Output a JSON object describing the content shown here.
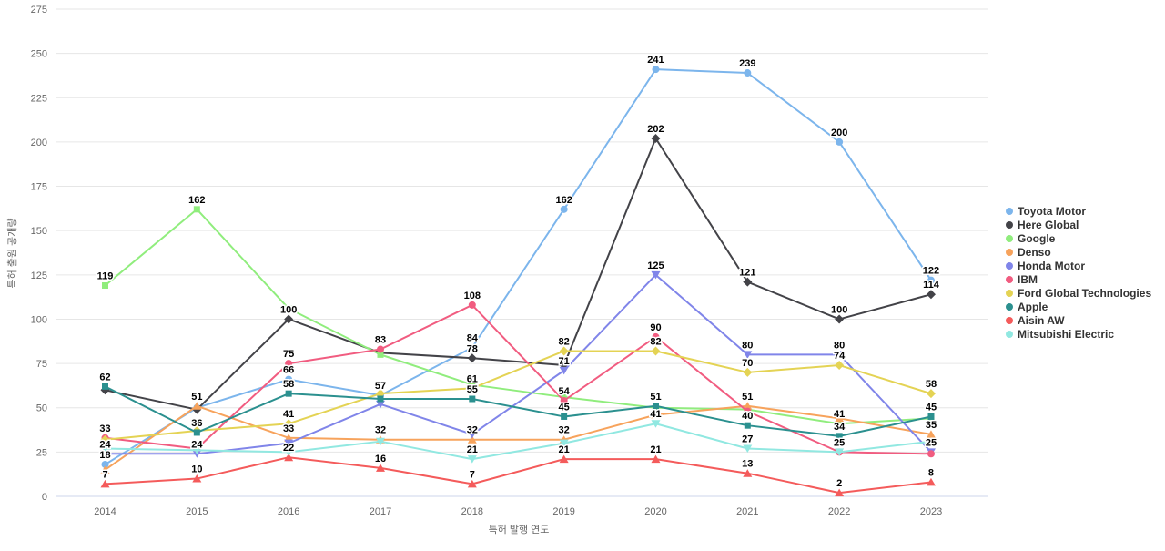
{
  "chart_data": {
    "type": "line",
    "title": "",
    "xlabel": "특허 발행 연도",
    "ylabel": "특허 출원 공개량",
    "ylim": [
      0,
      275
    ],
    "ytick_step": 25,
    "yticks": [
      0,
      25,
      50,
      75,
      100,
      125,
      150,
      175,
      200,
      225,
      250,
      275
    ],
    "grid": true,
    "legend_position": "right",
    "categories": [
      "2014",
      "2015",
      "2016",
      "2017",
      "2018",
      "2019",
      "2020",
      "2021",
      "2022",
      "2023"
    ],
    "series": [
      {
        "name": "Toyota Motor",
        "color": "#7cb5ec",
        "marker": "circle",
        "values": [
          18,
          50,
          66,
          57,
          84,
          162,
          241,
          239,
          200,
          122
        ],
        "labels": [
          18,
          null,
          66,
          57,
          84,
          162,
          241,
          239,
          200,
          122
        ]
      },
      {
        "name": "Here Global",
        "color": "#434348",
        "marker": "diamond",
        "values": [
          60,
          49,
          100,
          81,
          78,
          74,
          202,
          121,
          100,
          114
        ],
        "labels": [
          null,
          null,
          100,
          null,
          78,
          null,
          202,
          121,
          100,
          114
        ]
      },
      {
        "name": "Google",
        "color": "#90ed7d",
        "marker": "square",
        "values": [
          119,
          162,
          106,
          80,
          63,
          56,
          50,
          49,
          41,
          44
        ],
        "labels": [
          119,
          162,
          null,
          null,
          null,
          null,
          null,
          null,
          41,
          null
        ]
      },
      {
        "name": "Denso",
        "color": "#f7a35c",
        "marker": "triangle",
        "values": [
          15,
          51,
          33,
          32,
          32,
          32,
          46,
          51,
          44,
          35
        ],
        "labels": [
          null,
          51,
          33,
          32,
          32,
          32,
          null,
          51,
          null,
          35
        ]
      },
      {
        "name": "Honda Motor",
        "color": "#8085e9",
        "marker": "triangle-down",
        "values": [
          24,
          24,
          30,
          52,
          35,
          71,
          125,
          80,
          80,
          25
        ],
        "labels": [
          24,
          24,
          null,
          null,
          null,
          71,
          125,
          80,
          80,
          25
        ]
      },
      {
        "name": "IBM",
        "color": "#f15c80",
        "marker": "circle",
        "values": [
          33,
          27,
          75,
          83,
          108,
          54,
          90,
          48,
          25,
          24
        ],
        "labels": [
          33,
          null,
          75,
          83,
          108,
          54,
          90,
          null,
          25,
          null
        ]
      },
      {
        "name": "Ford Global Technologies",
        "color": "#e4d354",
        "marker": "diamond",
        "values": [
          32,
          37,
          41,
          58,
          61,
          82,
          82,
          70,
          74,
          58
        ],
        "labels": [
          null,
          null,
          41,
          null,
          61,
          82,
          82,
          70,
          74,
          58
        ]
      },
      {
        "name": "Apple",
        "color": "#2b908f",
        "marker": "square",
        "values": [
          62,
          36,
          58,
          55,
          55,
          45,
          51,
          40,
          34,
          45
        ],
        "labels": [
          62,
          36,
          58,
          null,
          55,
          45,
          51,
          40,
          34,
          45
        ]
      },
      {
        "name": "Aisin AW",
        "color": "#f45b5b",
        "marker": "triangle",
        "values": [
          7,
          10,
          22,
          16,
          7,
          21,
          21,
          13,
          2,
          8
        ],
        "labels": [
          7,
          10,
          22,
          16,
          7,
          21,
          21,
          13,
          2,
          8
        ]
      },
      {
        "name": "Mitsubishi Electric",
        "color": "#91e8e1",
        "marker": "triangle-down",
        "values": [
          27,
          26,
          25,
          31,
          21,
          30,
          41,
          27,
          25,
          31
        ],
        "labels": [
          null,
          null,
          null,
          null,
          21,
          null,
          41,
          27,
          null,
          null
        ]
      }
    ]
  }
}
